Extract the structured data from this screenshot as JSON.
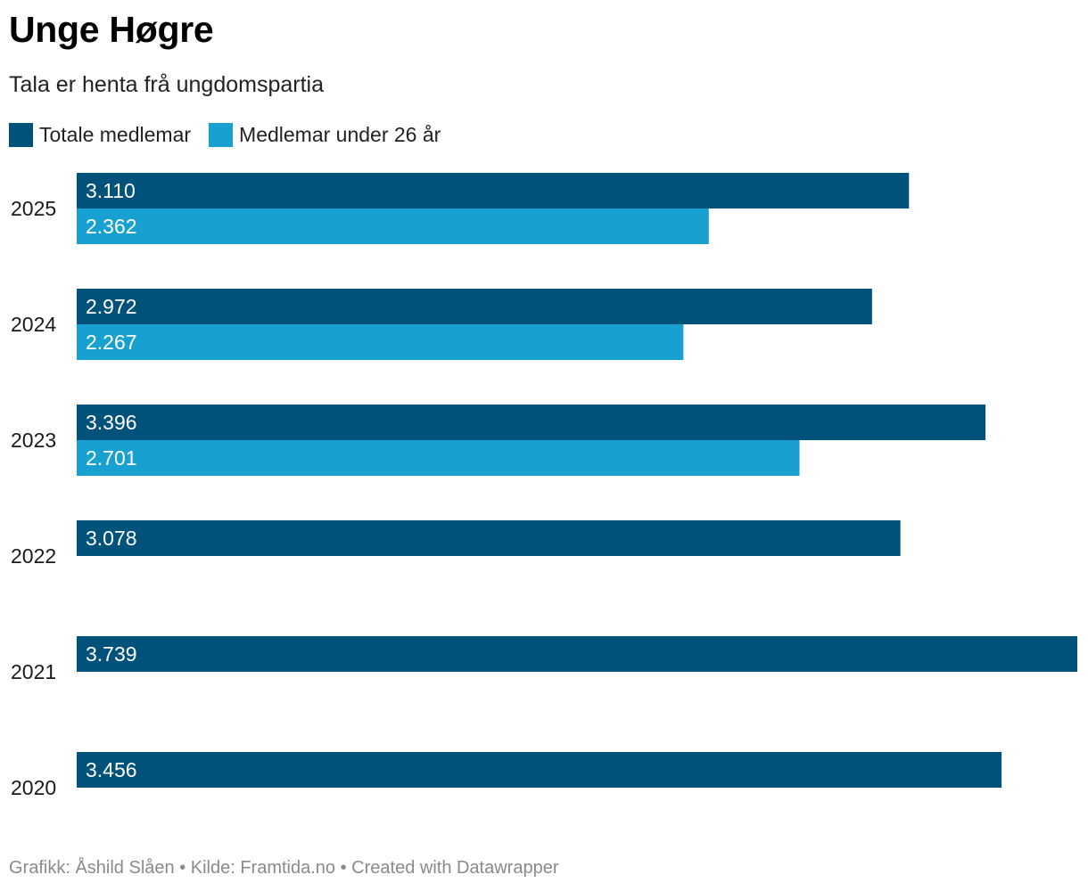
{
  "title": "Unge Høgre",
  "subtitle": "Tala er henta frå ungdomspartia",
  "footer": "Grafikk: Åshild Slåen • Kilde: Framtida.no • Created with Datawrapper",
  "colors": {
    "total": "#00527b",
    "under26": "#18a1d0"
  },
  "chart_data": {
    "type": "bar",
    "orientation": "horizontal",
    "categories": [
      "2025",
      "2024",
      "2023",
      "2022",
      "2021",
      "2020"
    ],
    "series": [
      {
        "name": "Totale medlemar",
        "values": [
          3110,
          2972,
          3396,
          3078,
          3739,
          3456
        ],
        "labels": [
          "3.110",
          "2.972",
          "3.396",
          "3.078",
          "3.739",
          "3.456"
        ]
      },
      {
        "name": "Medlemar under 26 år",
        "values": [
          2362,
          2267,
          2701,
          null,
          null,
          null
        ],
        "labels": [
          "2.362",
          "2.267",
          "2.701",
          null,
          null,
          null
        ]
      }
    ],
    "xlim": [
      0,
      3739
    ],
    "grid": false,
    "legend_position": "top-left"
  }
}
